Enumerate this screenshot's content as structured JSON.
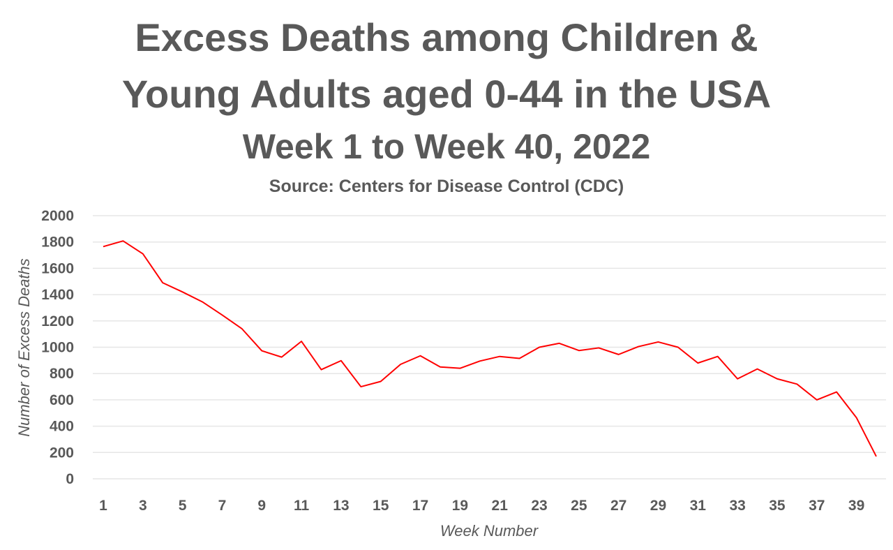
{
  "chart_data": {
    "type": "line",
    "title": "Excess Deaths among Children & Young Adults aged 0-44 in the USA",
    "title_lines": [
      "Excess Deaths among Children &",
      "Young Adults aged 0-44 in the USA",
      "Week 1 to Week 40, 2022"
    ],
    "subtitle": "Source: Centers for Disease Control (CDC)",
    "xlabel": "Week Number",
    "ylabel": "Number of Excess Deaths",
    "xlim": [
      1,
      40
    ],
    "ylim": [
      0,
      2000
    ],
    "yticks": [
      0,
      200,
      400,
      600,
      800,
      1000,
      1200,
      1400,
      1600,
      1800,
      2000
    ],
    "xticks": [
      1,
      3,
      5,
      7,
      9,
      11,
      13,
      15,
      17,
      19,
      21,
      23,
      25,
      27,
      29,
      31,
      33,
      35,
      37,
      39
    ],
    "grid": "horizontal",
    "legend": "none",
    "line_color": "#ff0000",
    "x": [
      1,
      2,
      3,
      4,
      5,
      6,
      7,
      8,
      9,
      10,
      11,
      12,
      13,
      14,
      15,
      16,
      17,
      18,
      19,
      20,
      21,
      22,
      23,
      24,
      25,
      26,
      27,
      28,
      29,
      30,
      31,
      32,
      33,
      34,
      35,
      36,
      37,
      38,
      39,
      40
    ],
    "series": [
      {
        "name": "Excess Deaths",
        "values": [
          1765,
          1808,
          1710,
          1490,
          1420,
          1345,
          1245,
          1140,
          973,
          925,
          1045,
          830,
          898,
          700,
          740,
          870,
          935,
          850,
          840,
          895,
          930,
          915,
          1000,
          1030,
          975,
          995,
          945,
          1005,
          1040,
          1000,
          880,
          930,
          760,
          835,
          760,
          720,
          600,
          660,
          465,
          170
        ]
      }
    ]
  }
}
